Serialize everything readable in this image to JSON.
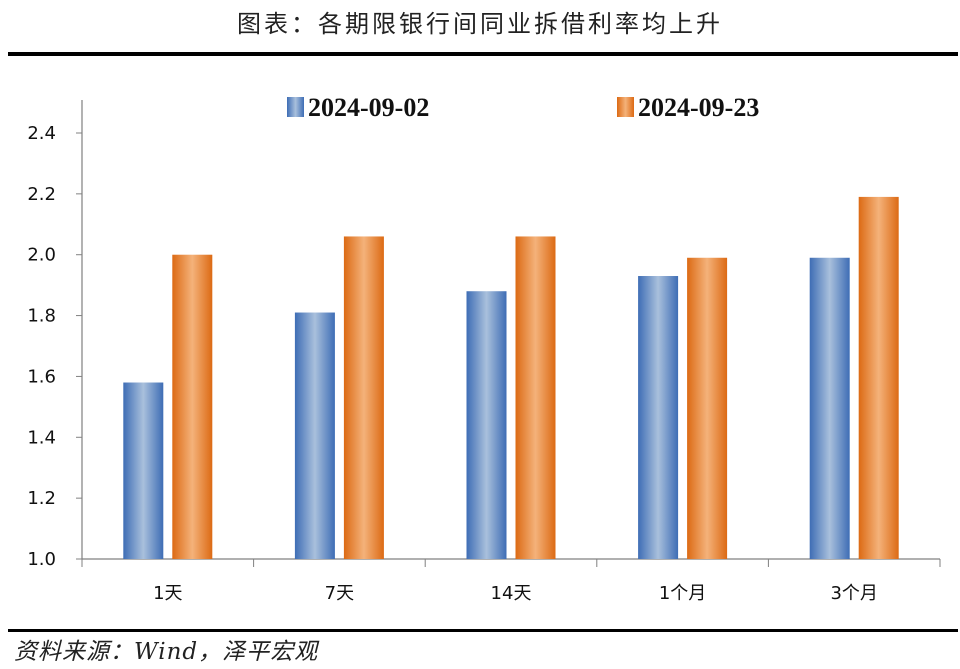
{
  "title": "图表：各期限银行间同业拆借利率均上升",
  "source": "资料来源：Wind，泽平宏观",
  "colors": {
    "series1": "#4F81BD",
    "series2": "#E37B23",
    "axis": "#808080"
  },
  "chart_data": {
    "type": "bar",
    "categories": [
      "1天",
      "7天",
      "14天",
      "1个月",
      "3个月"
    ],
    "series": [
      {
        "name": "2024-09-02",
        "values": [
          1.58,
          1.81,
          1.88,
          1.93,
          1.99
        ]
      },
      {
        "name": "2024-09-23",
        "values": [
          2.0,
          2.06,
          2.06,
          1.99,
          2.19
        ]
      }
    ],
    "ylim": [
      1.0,
      2.4
    ],
    "yticks": [
      "1.0",
      "1.2",
      "1.4",
      "1.6",
      "1.8",
      "2.0",
      "2.2",
      "2.4"
    ],
    "legend_position": "top",
    "grid": false
  }
}
